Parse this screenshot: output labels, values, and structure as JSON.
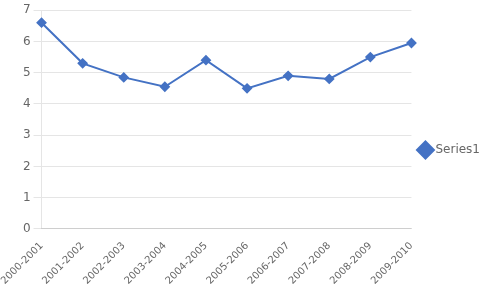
{
  "chart_data": {
    "type": "line",
    "categories": [
      "2000-2001",
      "2001-2002",
      "2002-2003",
      "2003-2004",
      "2004-2005",
      "2005-2006",
      "2006-2007",
      "2007-2008",
      "2008-2009",
      "2009-2010"
    ],
    "series": [
      {
        "name": "Series1",
        "color": "#4472C4",
        "marker": "diamond",
        "values": [
          6.6,
          5.3,
          4.85,
          4.55,
          5.4,
          4.5,
          4.9,
          4.8,
          5.5,
          5.95
        ]
      }
    ],
    "ylim": [
      0,
      7
    ],
    "yticks": [
      0,
      1,
      2,
      3,
      4,
      5,
      6,
      7
    ],
    "grid": true,
    "legend": "right"
  }
}
